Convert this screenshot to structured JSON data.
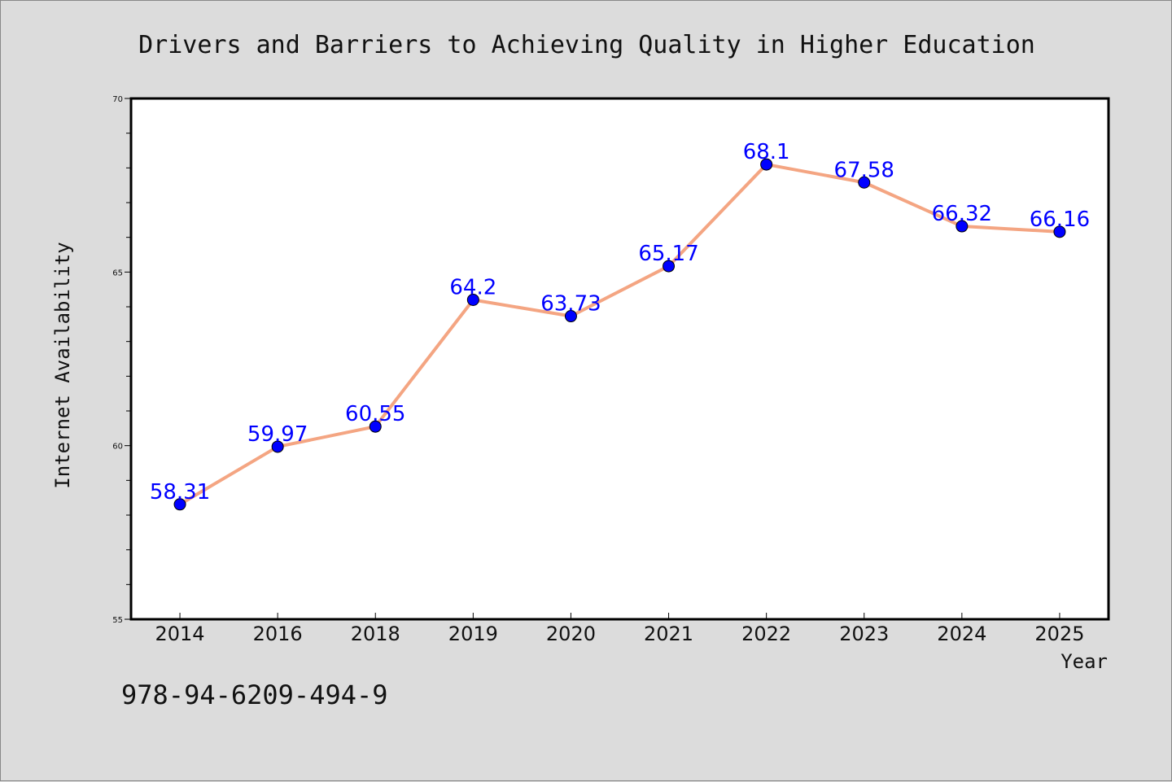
{
  "chart_data": {
    "type": "line",
    "title": "Drivers and Barriers to Achieving Quality in Higher Education",
    "xlabel": "Year",
    "ylabel": "Internet Availability",
    "categories": [
      "2014",
      "2016",
      "2018",
      "2019",
      "2020",
      "2021",
      "2022",
      "2023",
      "2024",
      "2025"
    ],
    "values": [
      58.31,
      59.97,
      60.55,
      64.2,
      63.73,
      65.17,
      68.1,
      67.58,
      66.32,
      66.16
    ],
    "data_labels": [
      "58.31",
      "59.97",
      "60.55",
      "64.2",
      "63.73",
      "65.17",
      "68.1",
      "67.58",
      "66.32",
      "66.16"
    ],
    "ylim": [
      55,
      70
    ],
    "yticks": [
      55,
      60,
      65,
      70
    ],
    "ytick_labels": [
      "55",
      "60",
      "65",
      "70"
    ],
    "grid": false,
    "legend": "none",
    "line_color": "#f4a582",
    "marker_color": "#0000ff",
    "label_color": "#0000ff",
    "background": "#dcdcdc",
    "plot_background": "#ffffff"
  },
  "footer": {
    "isbn": "978-94-6209-494-9"
  }
}
